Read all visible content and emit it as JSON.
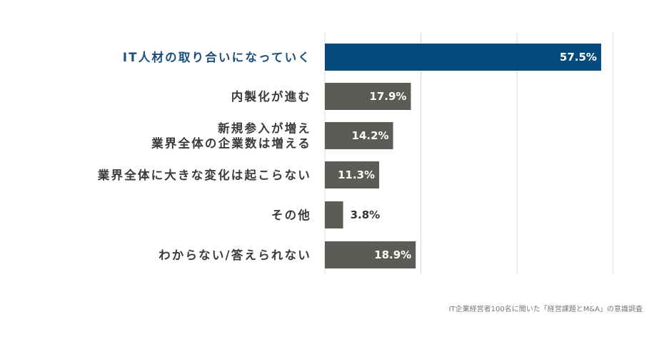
{
  "chart_data": {
    "type": "bar",
    "orientation": "horizontal",
    "categories": [
      [
        "IT人材の取り合いになっていく"
      ],
      [
        "内製化が進む"
      ],
      [
        "新規参入が増え",
        "業界全体の企業数は増える"
      ],
      [
        "業界全体に大きな変化は起こらない"
      ],
      [
        "その他"
      ],
      [
        "わからない/答えられない"
      ]
    ],
    "values": [
      57.5,
      17.9,
      14.2,
      11.3,
      3.8,
      18.9
    ],
    "value_labels": [
      "57.5%",
      "17.9%",
      "14.2%",
      "11.3%",
      "3.8%",
      "18.9%"
    ],
    "highlight_index": 0,
    "xlim": [
      0,
      60
    ],
    "gridlines": [
      20,
      40,
      60
    ],
    "grid": true,
    "colors": {
      "highlight": "#054a7d",
      "bar": "#5c5b55",
      "highlight_label": "#1b4e7e",
      "label": "#3a3a3a",
      "value_text_inside": "#ffffff",
      "value_text_outside": "#333333",
      "grid": "#d9d9d9"
    }
  },
  "source_note": "IT企業経営者100名に聞いた「経営課題とM&A」の意識調査"
}
